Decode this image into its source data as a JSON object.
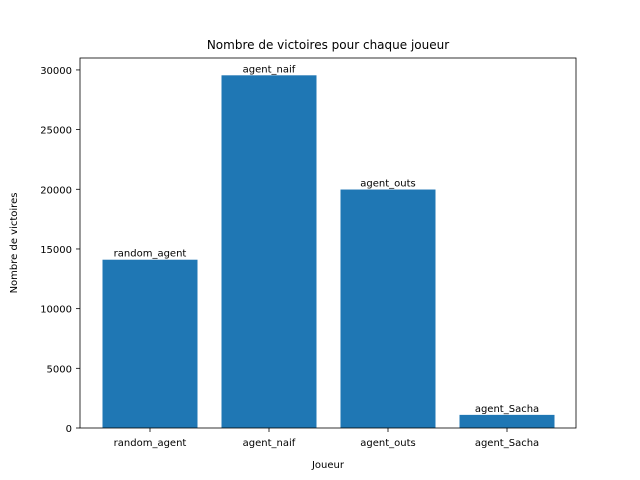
{
  "chart_data": {
    "type": "bar",
    "title": "Nombre de victoires pour chaque joueur",
    "xlabel": "Joueur",
    "ylabel": "Nombre de victoires",
    "categories": [
      "random_agent",
      "agent_naif",
      "agent_outs",
      "agent_Sacha"
    ],
    "values": [
      14100,
      29550,
      19980,
      1100
    ],
    "bar_labels": [
      "random_agent",
      "agent_naif",
      "agent_outs",
      "agent_Sacha"
    ],
    "ylim": [
      0,
      31000
    ],
    "yticks": [
      0,
      5000,
      10000,
      15000,
      20000,
      25000,
      30000
    ],
    "ytick_labels": [
      "0",
      "5000",
      "10000",
      "15000",
      "20000",
      "25000",
      "30000"
    ],
    "grid": false,
    "bar_color": "#1f77b4"
  }
}
